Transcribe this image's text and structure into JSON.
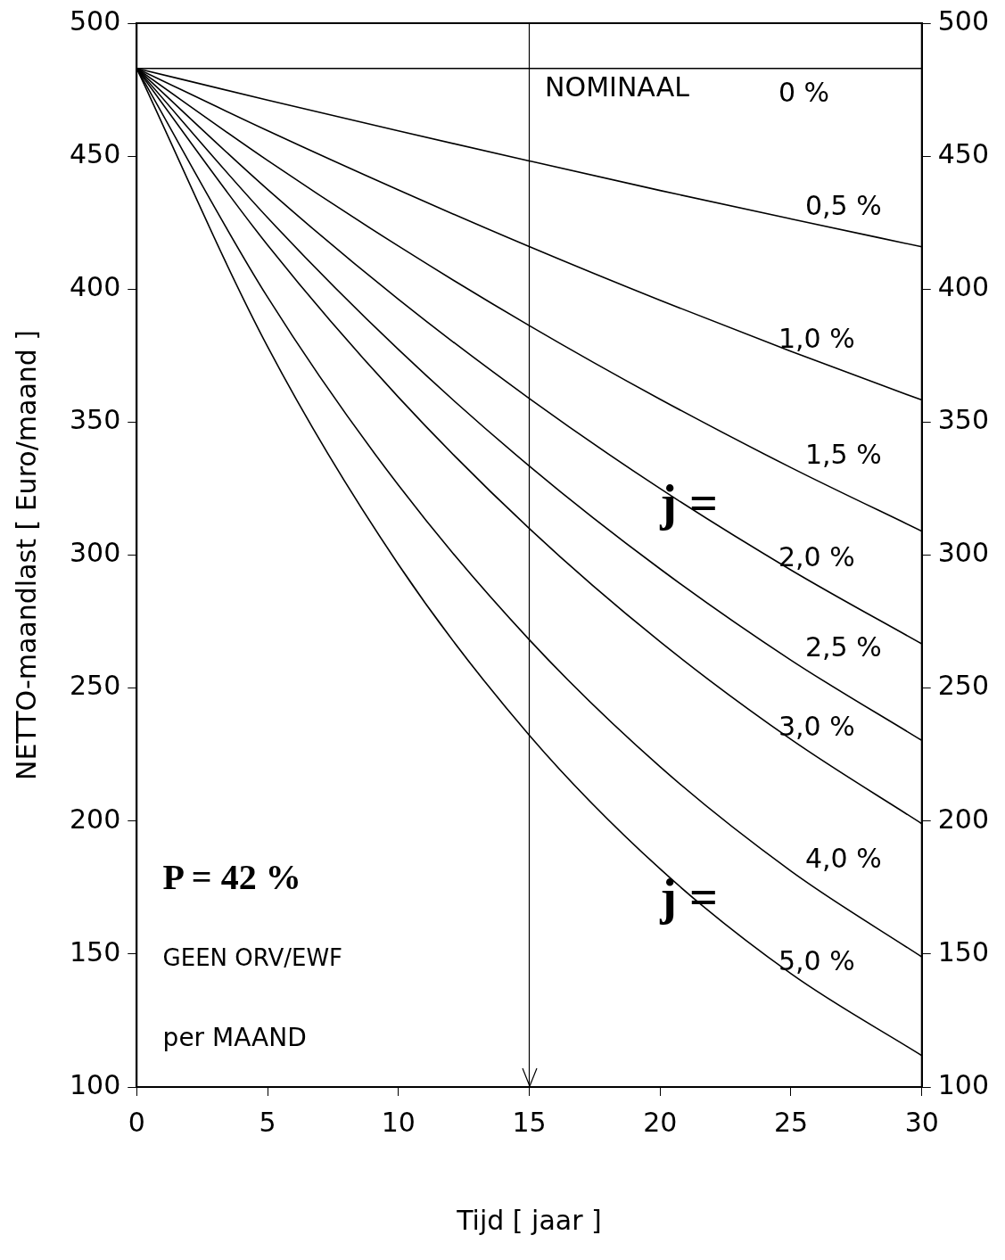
{
  "chart_data": {
    "type": "line",
    "xlabel": "Tijd [ jaar ]",
    "ylabel": "NETTO-maandlast [ Euro/maand ]",
    "x": [
      0,
      5,
      10,
      15,
      20,
      25,
      30
    ],
    "series": [
      {
        "name": "0 %",
        "color": "#000000",
        "values": [
          483,
          483,
          483,
          483,
          483,
          483,
          483
        ]
      },
      {
        "name": "0,5 %",
        "color": "#000000",
        "values": [
          483,
          471.1,
          459.5,
          448.2,
          437.1,
          426.4,
          415.9
        ]
      },
      {
        "name": "1,0 %",
        "color": "#000000",
        "values": [
          483,
          459.6,
          437.3,
          416.0,
          395.8,
          376.6,
          358.3
        ]
      },
      {
        "name": "1,5 %",
        "color": "#000000",
        "values": [
          483,
          448.4,
          416.2,
          386.3,
          358.6,
          332.9,
          309.0
        ]
      },
      {
        "name": "2,0 %",
        "color": "#000000",
        "values": [
          483,
          437.5,
          396.2,
          358.9,
          325.0,
          294.4,
          266.6
        ]
      },
      {
        "name": "2,5 %",
        "color": "#000000",
        "values": [
          483,
          426.9,
          377.3,
          333.5,
          294.8,
          260.5,
          230.3
        ]
      },
      {
        "name": "3,0 %",
        "color": "#000000",
        "values": [
          483,
          416.6,
          359.4,
          310.0,
          267.4,
          230.7,
          199.0
        ]
      },
      {
        "name": "4,0 %",
        "color": "#000000",
        "values": [
          483,
          397.0,
          326.3,
          268.2,
          220.4,
          181.2,
          148.9
        ]
      },
      {
        "name": "5,0 %",
        "color": "#000000",
        "values": [
          483,
          378.4,
          296.5,
          232.3,
          182.0,
          142.6,
          111.8
        ]
      }
    ],
    "xlim": [
      0,
      30
    ],
    "xticks": [
      0,
      5,
      10,
      15,
      20,
      25,
      30
    ],
    "ylim": [
      100,
      500
    ],
    "yticks": [
      100,
      150,
      200,
      250,
      300,
      350,
      400,
      450,
      500
    ],
    "y2lim": [
      100,
      500
    ],
    "y2ticks": [
      100,
      150,
      200,
      250,
      300,
      350,
      400,
      450,
      500
    ],
    "ref_lines": [
      {
        "axis": "x",
        "value": 15,
        "color": "#000000"
      }
    ],
    "annotations": [
      "NOMINAAL",
      "j =",
      "j =",
      "P = 42 %",
      "GEEN ORV/EWF",
      "per MAAND"
    ],
    "grid": false,
    "legend": false,
    "marker": "none",
    "line_style": "solid"
  }
}
